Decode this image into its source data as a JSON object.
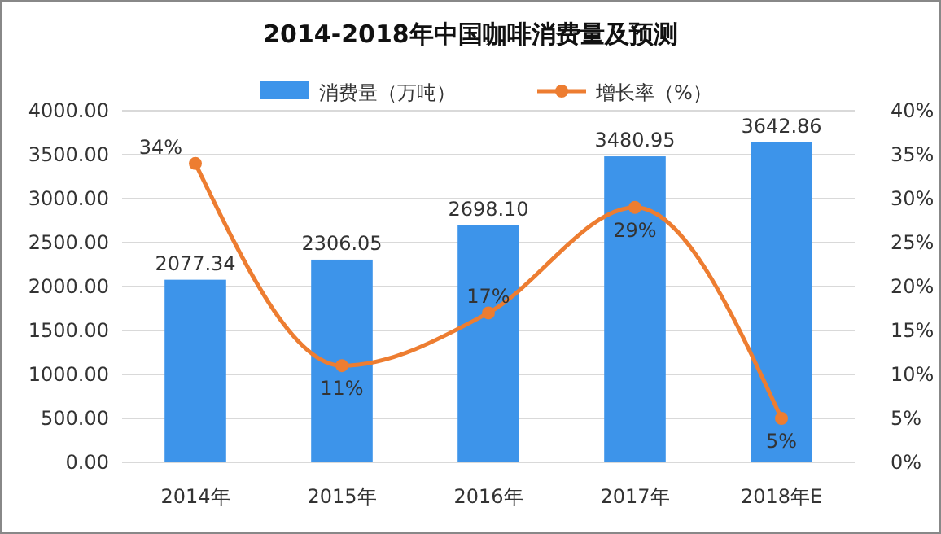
{
  "chart_data": {
    "type": "bar",
    "title": "2014-2018年中国咖啡消费量及预测",
    "categories": [
      "2014年",
      "2015年",
      "2016年",
      "2017年",
      "2018年E"
    ],
    "series": [
      {
        "name": "消费量（万吨）",
        "color": "#3d94ea",
        "values": [
          2077.34,
          2306.05,
          2698.1,
          3480.95,
          3642.86
        ],
        "value_labels": [
          "2077.34",
          "2306.05",
          "2698.10",
          "3480.95",
          "3642.86"
        ]
      },
      {
        "name": "增长率（%）",
        "type": "line",
        "axis": "y2",
        "color": "#ed7d31",
        "values": [
          34,
          11,
          17,
          29,
          5
        ],
        "value_labels": [
          "34%",
          "11%",
          "17%",
          "29%",
          "5%"
        ]
      }
    ],
    "ylim": [
      0,
      4000
    ],
    "yticks": [
      {
        "value": 0,
        "label": "0.00"
      },
      {
        "value": 500,
        "label": "500.00"
      },
      {
        "value": 1000,
        "label": "1000.00"
      },
      {
        "value": 1500,
        "label": "1500.00"
      },
      {
        "value": 2000,
        "label": "2000.00"
      },
      {
        "value": 2500,
        "label": "2500.00"
      },
      {
        "value": 3000,
        "label": "3000.00"
      },
      {
        "value": 3500,
        "label": "3500.00"
      },
      {
        "value": 4000,
        "label": "4000.00"
      }
    ],
    "y2lim": [
      0,
      40
    ],
    "y2ticks": [
      {
        "value": 0,
        "label": "0%"
      },
      {
        "value": 5,
        "label": "5%"
      },
      {
        "value": 10,
        "label": "10%"
      },
      {
        "value": 15,
        "label": "15%"
      },
      {
        "value": 20,
        "label": "20%"
      },
      {
        "value": 25,
        "label": "25%"
      },
      {
        "value": 30,
        "label": "30%"
      },
      {
        "value": 35,
        "label": "35%"
      },
      {
        "value": 40,
        "label": "40%"
      }
    ],
    "data_labels": true,
    "grid": "y",
    "legend": "top",
    "marker": "circle"
  }
}
